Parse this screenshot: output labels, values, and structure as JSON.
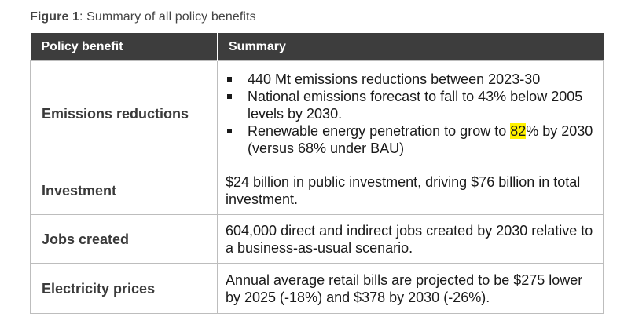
{
  "caption": {
    "label": "Figure 1",
    "text": ": Summary of all policy benefits"
  },
  "table": {
    "headers": [
      "Policy benefit",
      "Summary"
    ],
    "rows": [
      {
        "benefit": "Emissions reductions",
        "bullets": [
          "440 Mt emissions reductions between 2023-30",
          "National emissions forecast to fall to 43% below 2005 levels by 2030.",
          "Renewable energy penetration to grow to 82% by 2030 (versus 68% under BAU)"
        ],
        "bullet3_before": "Renewable energy penetration to grow to ",
        "bullet3_highlight": "82",
        "bullet3_after": "% by 2030 (versus 68% under BAU)"
      },
      {
        "benefit": "Investment",
        "summary": "$24 billion in public investment, driving $76 billion in total investment."
      },
      {
        "benefit": "Jobs created",
        "summary": "604,000 direct and indirect jobs created by 2030 relative to a business-as-usual scenario."
      },
      {
        "benefit": "Electricity prices",
        "summary": "Annual average retail bills are projected to be $275 lower by 2025 (-18%) and $378 by 2030 (-26%)."
      }
    ]
  },
  "colors": {
    "header_bg": "#3d3d3d",
    "highlight": "#fff200",
    "border": "#bdbdbd"
  }
}
